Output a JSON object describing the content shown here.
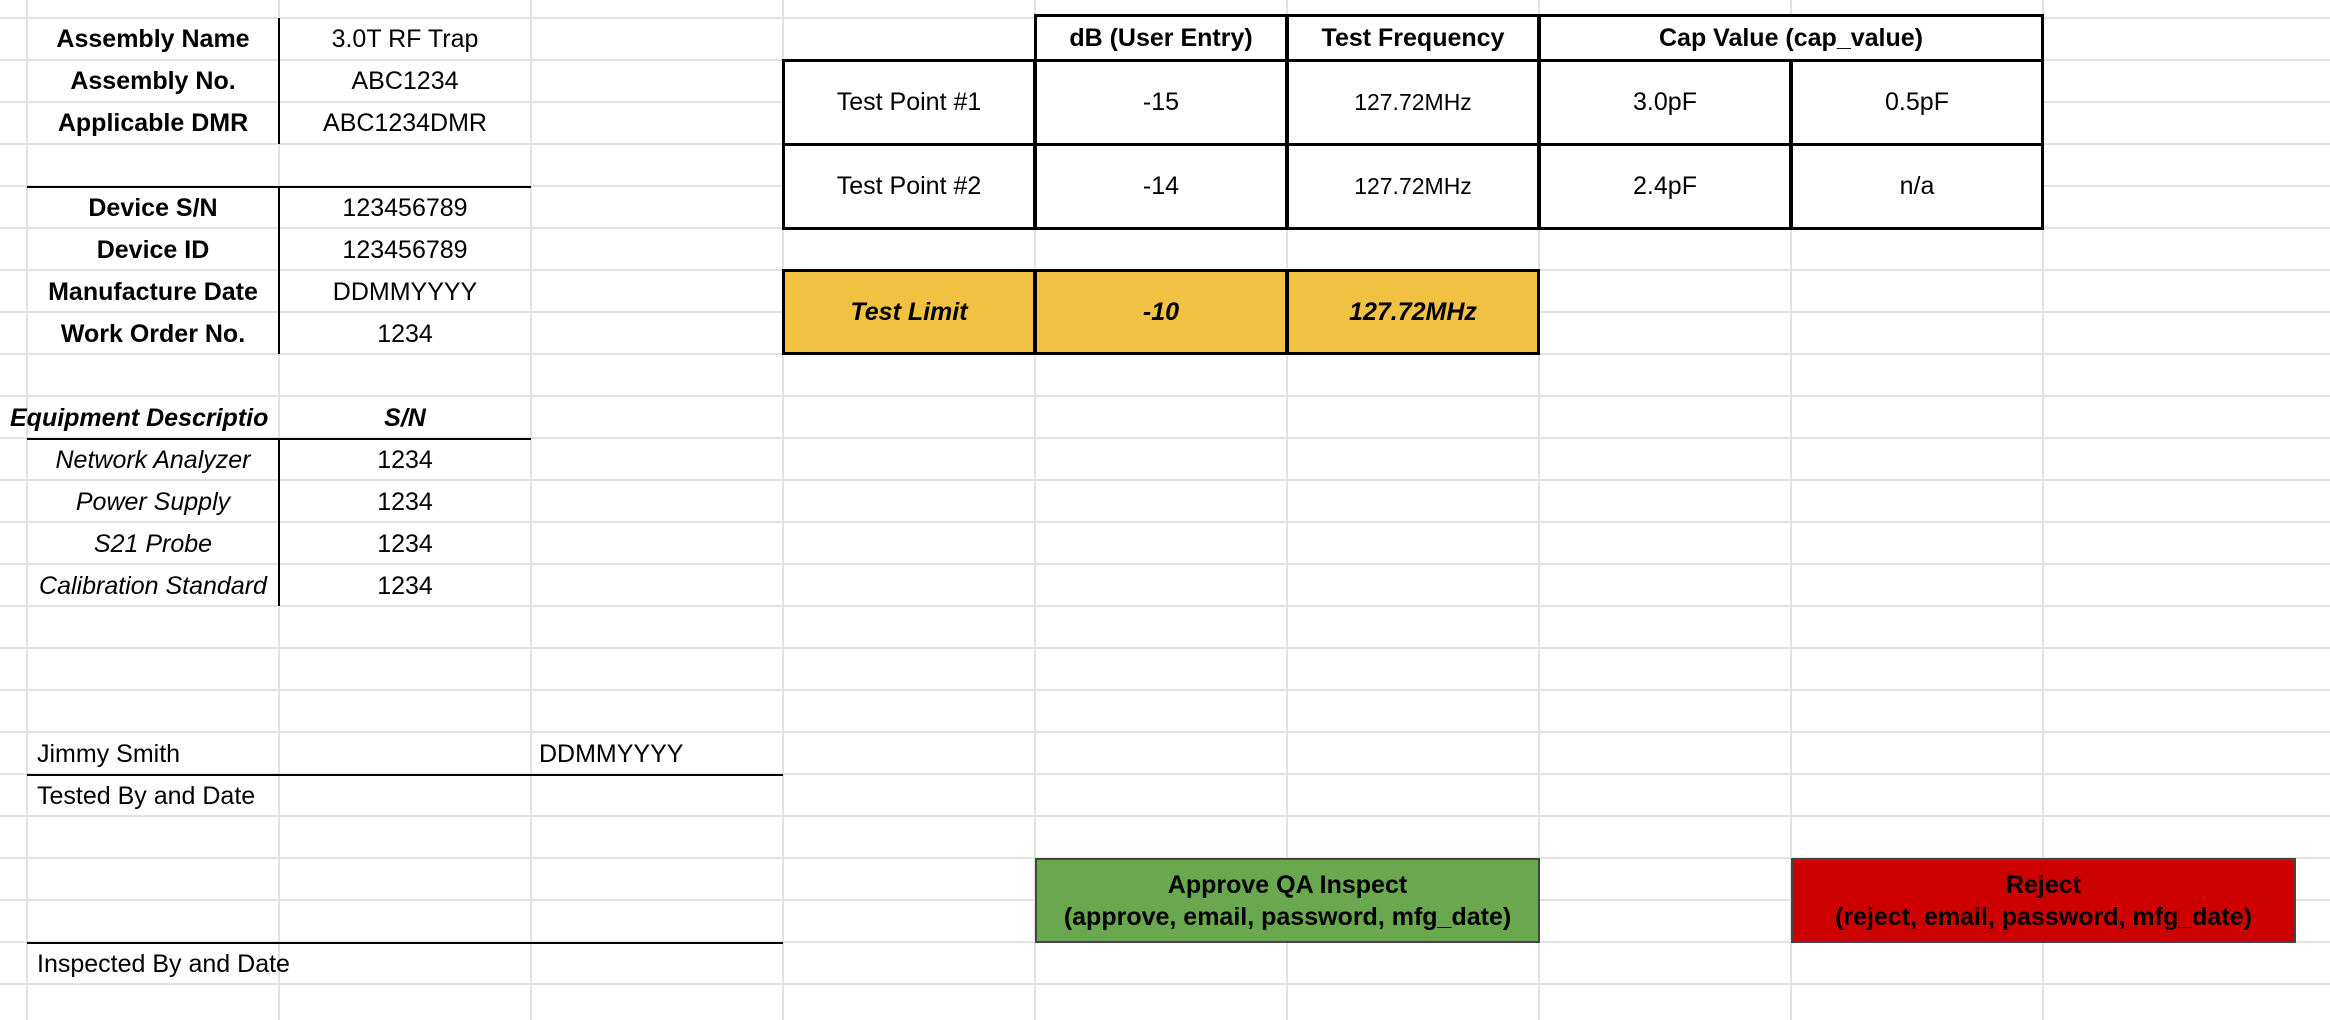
{
  "colors": {
    "test_limit_bg": "#f1c141",
    "approve_bg": "#6aa84f",
    "reject_bg": "#cc0000",
    "gridline": "#e2e2e2"
  },
  "assembly": [
    {
      "label": "Assembly Name",
      "value": "3.0T RF Trap"
    },
    {
      "label": "Assembly No.",
      "value": "ABC1234"
    },
    {
      "label": "Applicable DMR",
      "value": "ABC1234DMR"
    }
  ],
  "device": [
    {
      "label": "Device S/N",
      "value": "123456789"
    },
    {
      "label": "Device ID",
      "value": "123456789"
    },
    {
      "label": "Manufacture Date",
      "value": "DDMMYYYY"
    },
    {
      "label": "Work Order No.",
      "value": "1234"
    }
  ],
  "equipment": {
    "header_description": "Equipment Descriptio",
    "header_sn": "S/N",
    "rows": [
      {
        "name": "Network Analyzer",
        "sn": "1234"
      },
      {
        "name": "Power Supply",
        "sn": "1234"
      },
      {
        "name": "S21 Probe",
        "sn": "1234"
      },
      {
        "name": "Calibration Standard",
        "sn": "1234"
      }
    ]
  },
  "signoff": {
    "tester_name": "Jimmy Smith",
    "tester_date": "DDMMYYYY",
    "tested_label": "Tested By and Date",
    "inspected_label": "Inspected By and Date"
  },
  "test_table": {
    "headers": [
      "dB (User Entry)",
      "Test Frequency",
      "Cap Value (cap_value)"
    ],
    "rows": [
      {
        "point": "Test Point #1",
        "db": "-15",
        "freq": "127.72MHz",
        "cap1": "3.0pF",
        "cap2": "0.5pF"
      },
      {
        "point": "Test Point #2",
        "db": "-14",
        "freq": "127.72MHz",
        "cap1": "2.4pF",
        "cap2": "n/a"
      }
    ]
  },
  "test_limit": {
    "label": "Test Limit",
    "db": "-10",
    "freq": "127.72MHz"
  },
  "buttons": {
    "approve_title": "Approve QA Inspect",
    "approve_args": "(approve, email, password, mfg_date)",
    "reject_title": "Reject",
    "reject_args": "(reject, email, password, mfg_date)"
  }
}
